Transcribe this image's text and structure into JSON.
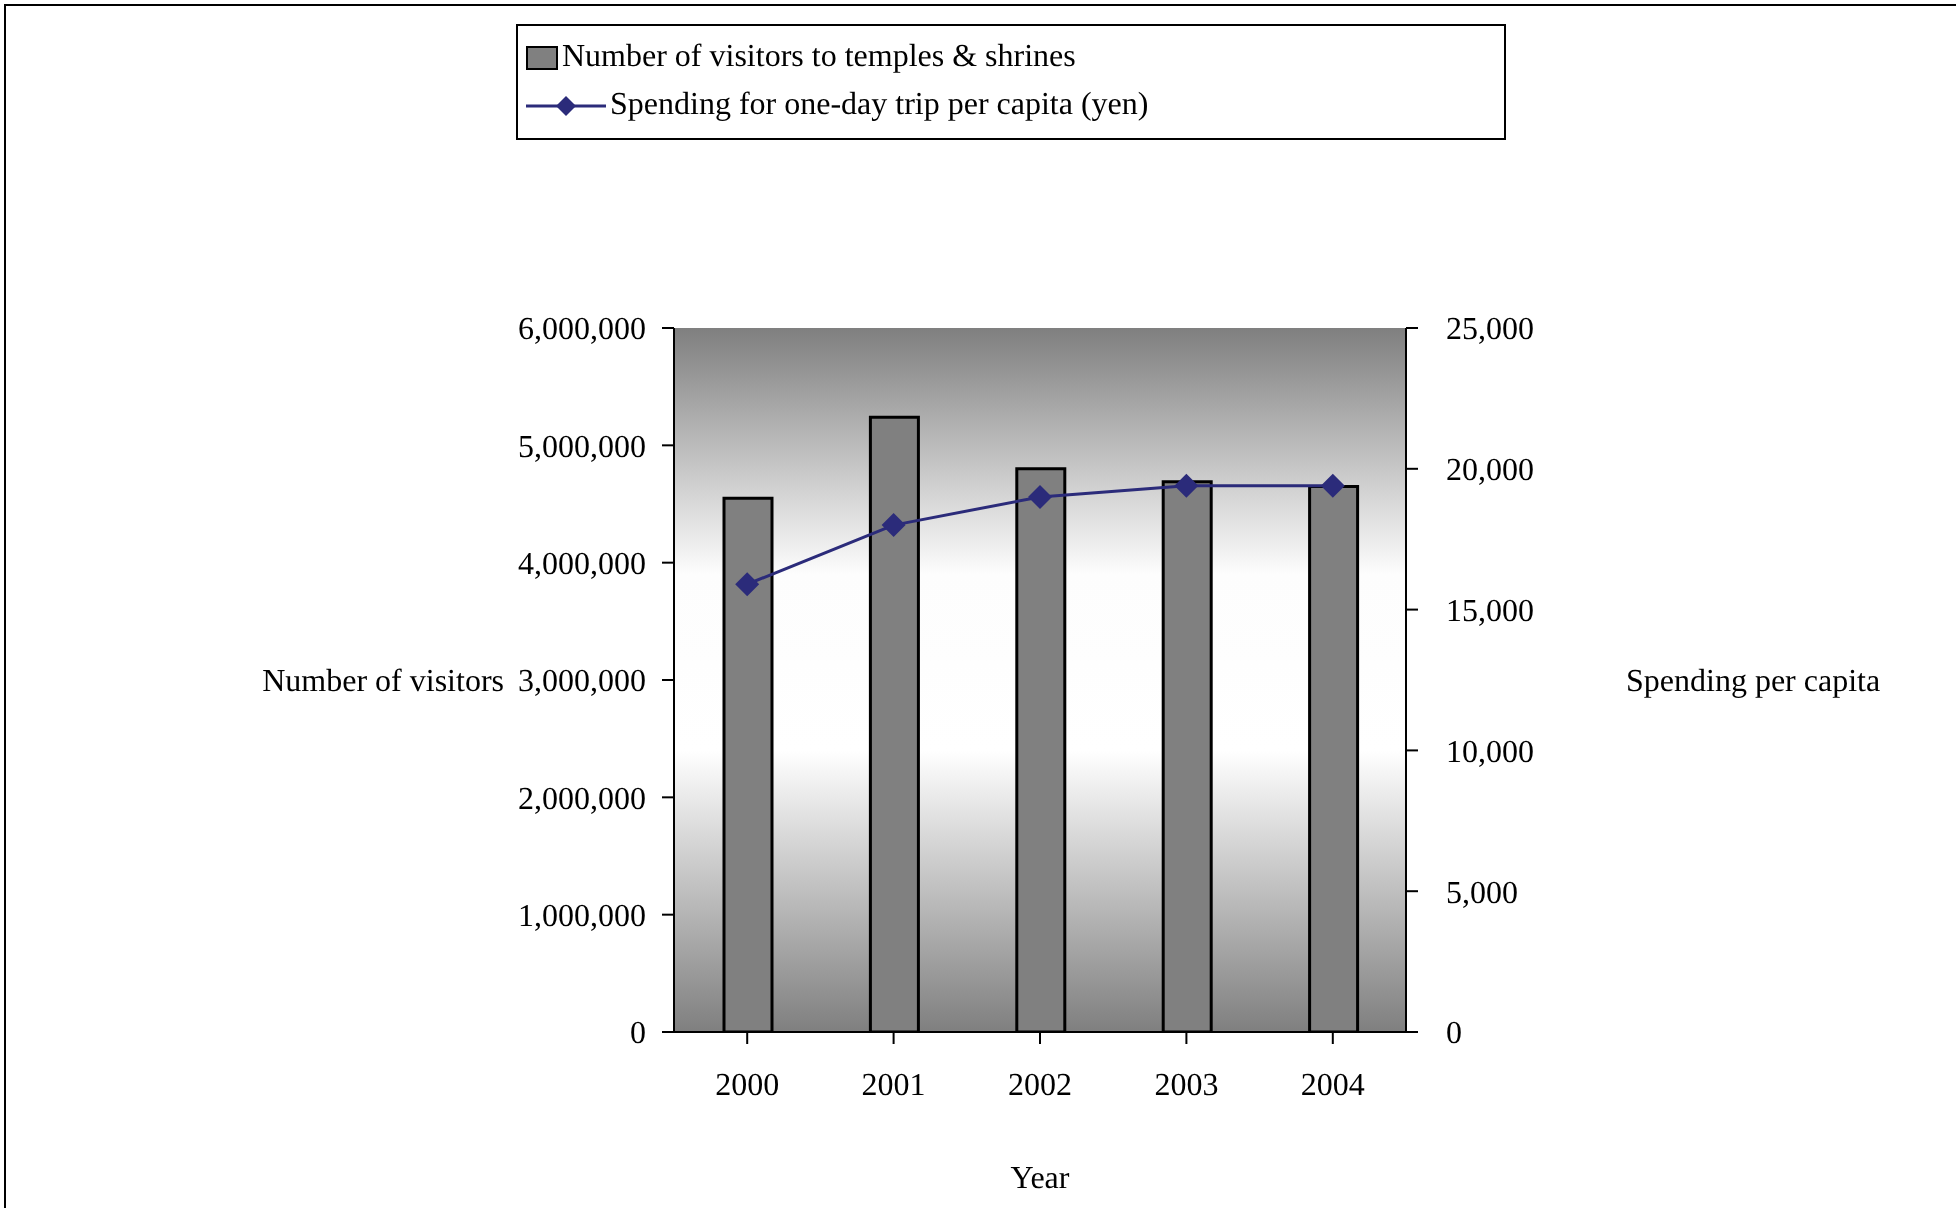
{
  "chart_data": {
    "type": "bar",
    "xlabel": "Year",
    "ylabel": "Number of visitors",
    "y2label": "Spending per capita",
    "categories": [
      "2000",
      "2001",
      "2002",
      "2003",
      "2004"
    ],
    "series": [
      {
        "name": "Number of visitors to temples & shrines",
        "color": "#808080",
        "values": [
          4550000,
          5240000,
          4800000,
          4690000,
          4650000
        ]
      },
      {
        "name": "Spending for one-day trip per capita (yen)",
        "type": "line",
        "axis": "y2",
        "color": "#2b2b7a",
        "marker": "diamond",
        "line_style": "solid",
        "values": [
          15900,
          18000,
          19000,
          19400,
          19400
        ]
      }
    ],
    "ylim": [
      0,
      6000000
    ],
    "yticks": [
      0,
      {
        "value": 1000000,
        "label": "1,000,000"
      },
      {
        "value": 2000000,
        "label": "2,000,000"
      },
      {
        "value": 3000000,
        "label": "3,000,000"
      },
      {
        "value": 4000000,
        "label": "4,000,000"
      },
      {
        "value": 5000000,
        "label": "5,000,000"
      },
      {
        "value": 6000000,
        "label": "6,000,000"
      }
    ],
    "y2lim": [
      0,
      25000
    ],
    "y2ticks": [
      0,
      {
        "value": 5000,
        "label": "5,000"
      },
      {
        "value": 10000,
        "label": "10,000"
      },
      {
        "value": 15000,
        "label": "15,000"
      },
      {
        "value": 20000,
        "label": "20,000"
      },
      {
        "value": 25000,
        "label": "25,000"
      }
    ],
    "grid": false,
    "legend": "top"
  }
}
